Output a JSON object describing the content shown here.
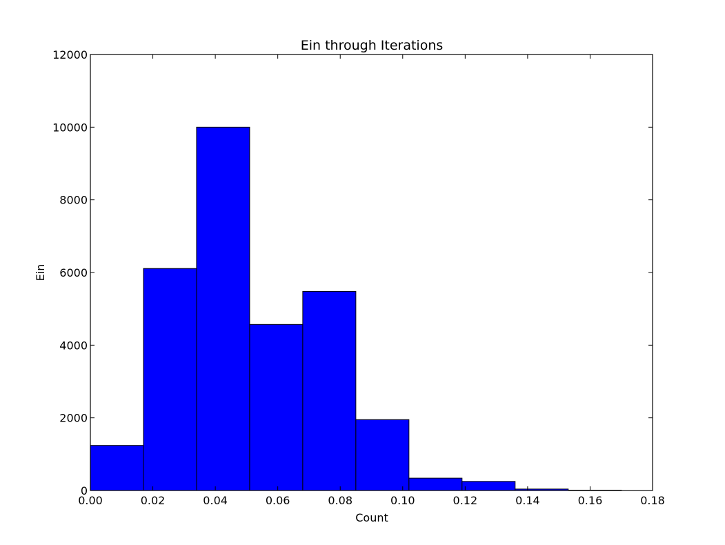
{
  "chart_data": {
    "type": "bar",
    "subtype": "histogram",
    "title": "Ein through Iterations",
    "xlabel": "Count",
    "ylabel": "Ein",
    "xlim": [
      0.0,
      0.18
    ],
    "ylim": [
      0,
      12000
    ],
    "x_ticks": [
      "0.00",
      "0.02",
      "0.04",
      "0.06",
      "0.08",
      "0.10",
      "0.12",
      "0.14",
      "0.16",
      "0.18"
    ],
    "y_ticks": [
      "0",
      "2000",
      "4000",
      "6000",
      "8000",
      "10000",
      "12000"
    ],
    "bin_edges": [
      0.0,
      0.017,
      0.034,
      0.051,
      0.068,
      0.085,
      0.102,
      0.119,
      0.136,
      0.153,
      0.17
    ],
    "values": [
      1240,
      6110,
      10000,
      4570,
      5480,
      1950,
      340,
      250,
      40,
      10
    ],
    "bar_color": "#0000ff",
    "edge_color": "#000000",
    "grid": false
  }
}
